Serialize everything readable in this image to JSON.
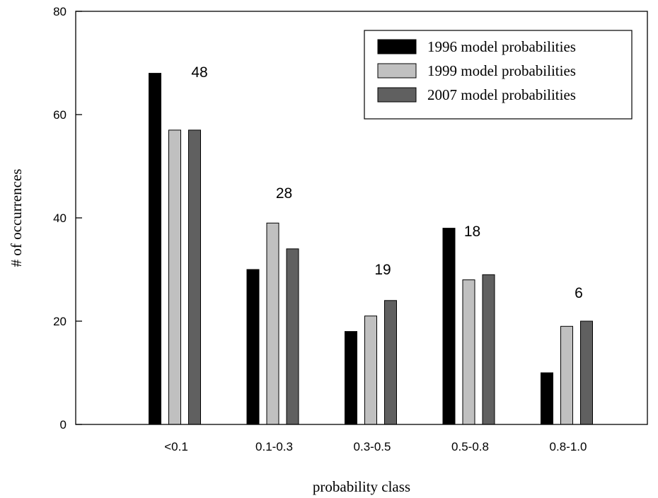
{
  "chart_data": {
    "type": "bar",
    "title": "",
    "xlabel": "probability class",
    "ylabel": "# of occurrences",
    "ylim": [
      0,
      80
    ],
    "yticks": [
      0,
      20,
      40,
      60,
      80
    ],
    "categories": [
      "<0.1",
      "0.1-0.3",
      "0.3-0.5",
      "0.5-0.8",
      "0.8-1.0"
    ],
    "series": [
      {
        "name": "1996 model probabilities",
        "color": "#000000",
        "values": [
          68,
          30,
          18,
          38,
          10
        ]
      },
      {
        "name": "1999 model probabilities",
        "color": "#c0c0c0",
        "values": [
          57,
          39,
          21,
          28,
          19
        ]
      },
      {
        "name": "2007 model probabilities",
        "color": "#606060",
        "values": [
          57,
          34,
          24,
          29,
          20
        ]
      }
    ],
    "annotations": [
      "48",
      "28",
      "19",
      "18",
      "6"
    ],
    "grid": false,
    "legend_position": "top-right"
  }
}
